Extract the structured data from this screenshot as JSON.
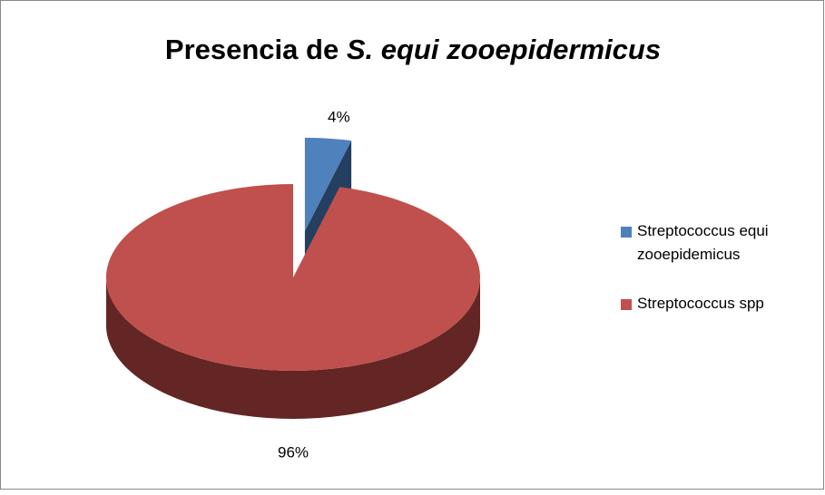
{
  "chart_data": {
    "type": "pie3d",
    "title": "Presencia de",
    "title_italic": "S. equi zooepidermicus",
    "categories": [
      "Streptococcus equi zooepidemicus",
      "Streptococcus spp"
    ],
    "values": [
      4,
      96
    ],
    "value_labels": [
      "4%",
      "96%"
    ],
    "colors": [
      "#4f81bd",
      "#c0504d"
    ],
    "side_colors": [
      "#243f60",
      "#632624"
    ],
    "legend": "right"
  }
}
